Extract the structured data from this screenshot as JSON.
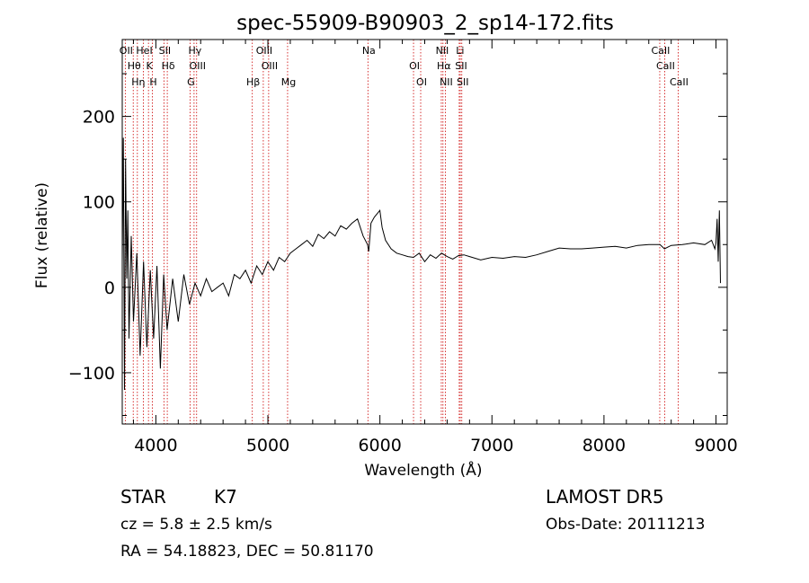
{
  "chart_data": {
    "type": "line",
    "title": "spec-55909-B90903_2_sp14-172.fits",
    "xlabel": "Wavelength (Å)",
    "ylabel": "Flux (relative)",
    "xlim": [
      3700,
      9100
    ],
    "ylim": [
      -160,
      290
    ],
    "x_ticks": [
      4000,
      5000,
      6000,
      7000,
      8000,
      9000
    ],
    "y_ticks": [
      -100,
      0,
      100,
      200
    ],
    "grid": false,
    "legend": "none",
    "series": [
      {
        "x": [
          3700,
          3710,
          3720,
          3730,
          3740,
          3750,
          3760,
          3780,
          3800,
          3830,
          3860,
          3890,
          3920,
          3950,
          3980,
          4010,
          4040,
          4070,
          4100,
          4150,
          4200,
          4250,
          4300,
          4350,
          4400,
          4450,
          4500,
          4550,
          4600,
          4650,
          4700,
          4750,
          4800,
          4850,
          4900,
          4950,
          5000,
          5050,
          5100,
          5150,
          5200,
          5250,
          5300,
          5350,
          5400,
          5450,
          5500,
          5550,
          5600,
          5650,
          5700,
          5750,
          5800,
          5850,
          5890,
          5900,
          5920,
          5950,
          6000,
          6020,
          6050,
          6100,
          6150,
          6200,
          6250,
          6300,
          6350,
          6400,
          6450,
          6500,
          6550,
          6600,
          6650,
          6700,
          6750,
          6800,
          6900,
          7000,
          7100,
          7200,
          7300,
          7400,
          7500,
          7600,
          7700,
          7800,
          7900,
          8000,
          8100,
          8200,
          8300,
          8400,
          8500,
          8540,
          8600,
          8700,
          8800,
          8900,
          8960,
          8990,
          9000,
          9010,
          9020,
          9030,
          9040
        ],
        "y": [
          30,
          175,
          -120,
          150,
          10,
          90,
          -60,
          60,
          -40,
          40,
          -80,
          30,
          -70,
          20,
          -60,
          25,
          -95,
          15,
          -50,
          10,
          -40,
          15,
          -20,
          5,
          -10,
          10,
          -5,
          0,
          5,
          -10,
          15,
          10,
          20,
          5,
          25,
          15,
          30,
          20,
          35,
          30,
          40,
          45,
          50,
          55,
          48,
          62,
          57,
          65,
          60,
          72,
          68,
          75,
          80,
          60,
          50,
          42,
          75,
          82,
          90,
          70,
          55,
          45,
          40,
          38,
          36,
          35,
          40,
          30,
          38,
          34,
          40,
          36,
          33,
          37,
          38,
          36,
          32,
          35,
          34,
          36,
          35,
          38,
          42,
          46,
          45,
          45,
          46,
          47,
          48,
          46,
          49,
          50,
          50,
          45,
          49,
          50,
          52,
          50,
          55,
          45,
          52,
          80,
          30,
          90,
          5
        ]
      }
    ],
    "line_markers": [
      {
        "name": "OII",
        "wavelength": 3727
      },
      {
        "name": "Hθ",
        "wavelength": 3798
      },
      {
        "name": "Hη",
        "wavelength": 3835
      },
      {
        "name": "HeI",
        "wavelength": 3889
      },
      {
        "name": "K",
        "wavelength": 3934
      },
      {
        "name": "H",
        "wavelength": 3969
      },
      {
        "name": "SII",
        "wavelength": 4072
      },
      {
        "name": "Hδ",
        "wavelength": 4102
      },
      {
        "name": "G",
        "wavelength": 4305
      },
      {
        "name": "Hγ",
        "wavelength": 4341
      },
      {
        "name": "OIII",
        "wavelength": 4364
      },
      {
        "name": "Hβ",
        "wavelength": 4861
      },
      {
        "name": "OIII",
        "wavelength": 4959
      },
      {
        "name": "OIII",
        "wavelength": 5007
      },
      {
        "name": "Mg",
        "wavelength": 5176
      },
      {
        "name": "Na",
        "wavelength": 5893
      },
      {
        "name": "OI",
        "wavelength": 6300
      },
      {
        "name": "OI",
        "wavelength": 6364
      },
      {
        "name": "NII",
        "wavelength": 6548
      },
      {
        "name": "Hα",
        "wavelength": 6563
      },
      {
        "name": "NII",
        "wavelength": 6584
      },
      {
        "name": "Li",
        "wavelength": 6708
      },
      {
        "name": "SII",
        "wavelength": 6717
      },
      {
        "name": "SII",
        "wavelength": 6731
      },
      {
        "name": "CaII",
        "wavelength": 8498
      },
      {
        "name": "CaII",
        "wavelength": 8542
      },
      {
        "name": "CaII",
        "wavelength": 8662
      }
    ],
    "marker_color": "#cc0000"
  },
  "info": {
    "object_class": "STAR",
    "subclass": "K7",
    "survey": "LAMOST DR5",
    "redshift": "cz = 5.8 ± 2.5 km/s",
    "obs_date": "Obs-Date: 20111213",
    "coords": "RA =  54.18823, DEC =  50.81170"
  }
}
